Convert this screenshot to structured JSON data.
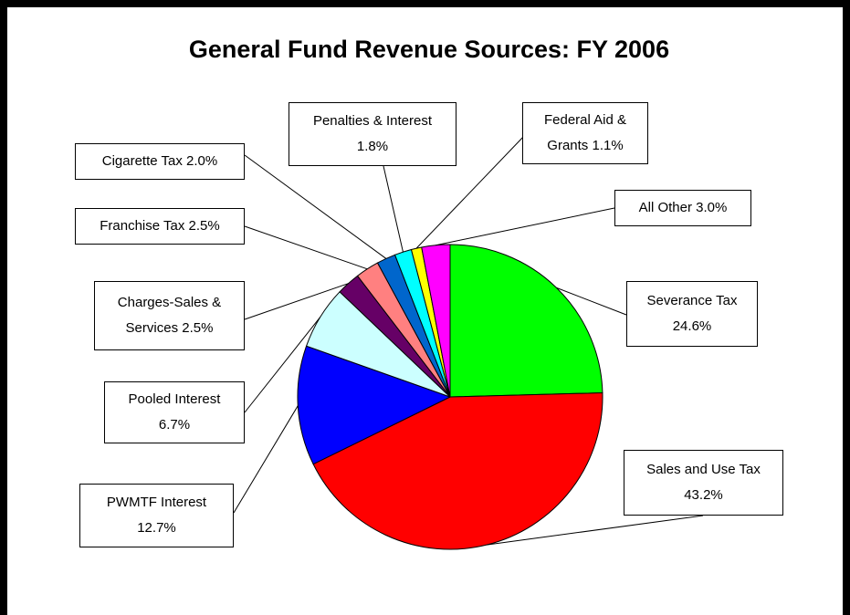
{
  "chart_data": {
    "type": "pie",
    "title": "General Fund Revenue Sources: FY 2006",
    "categories": [
      "Severance Tax",
      "Sales and Use Tax",
      "PWMTF Interest",
      "Pooled Interest",
      "Charges-Sales & Services",
      "Franchise Tax",
      "Cigarette Tax",
      "Penalties & Interest",
      "Federal Aid & Grants",
      "All Other"
    ],
    "values": [
      24.6,
      43.2,
      12.7,
      6.7,
      2.5,
      2.5,
      2.0,
      1.8,
      1.1,
      3.0
    ],
    "value_labels": [
      "24.6%",
      "43.2%",
      "12.7%",
      "6.7%",
      "2.5%",
      "2.5%",
      "2.0%",
      "1.8%",
      "1.1%",
      "3.0%"
    ],
    "colors": [
      "#00ff00",
      "#ff0000",
      "#0000ff",
      "#ccffff",
      "#660066",
      "#ff8080",
      "#0066cc",
      "#00ffff",
      "#ffff00",
      "#ff00ff"
    ]
  }
}
